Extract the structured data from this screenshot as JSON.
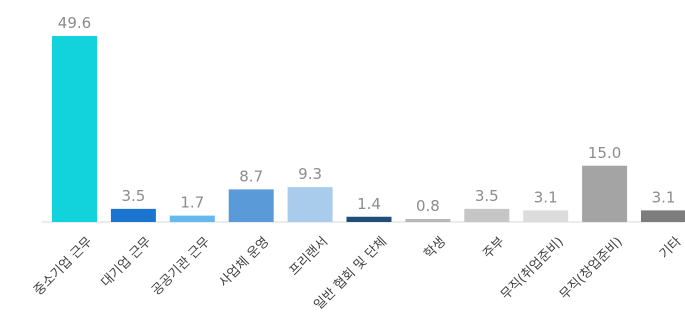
{
  "chart_data": {
    "type": "bar",
    "title": "",
    "xlabel": "",
    "ylabel": "",
    "ylim": [
      0,
      50
    ],
    "grid": false,
    "categories": [
      "중소기업 근무",
      "대기업 근무",
      "공공기관 근무",
      "사업체 운영",
      "프리랜서",
      "일반 협회 및 단체",
      "학생",
      "주부",
      "무직(취업준비)",
      "무직(창업준비)",
      "기타"
    ],
    "values": [
      49.6,
      3.5,
      1.7,
      8.7,
      9.3,
      1.4,
      0.8,
      3.5,
      3.1,
      15.0,
      3.1
    ],
    "value_labels": [
      "49.6",
      "3.5",
      "1.7",
      "8.7",
      "9.3",
      "1.4",
      "0.8",
      "3.5",
      "3.1",
      "15.0",
      "3.1"
    ],
    "colors": [
      "#12d3dc",
      "#1a74d0",
      "#64b9ee",
      "#5a9ad9",
      "#a9ccec",
      "#1f4e79",
      "#b8b8b8",
      "#c6c6c6",
      "#dcdcdc",
      "#a4a4a4",
      "#7d7d7d"
    ]
  }
}
